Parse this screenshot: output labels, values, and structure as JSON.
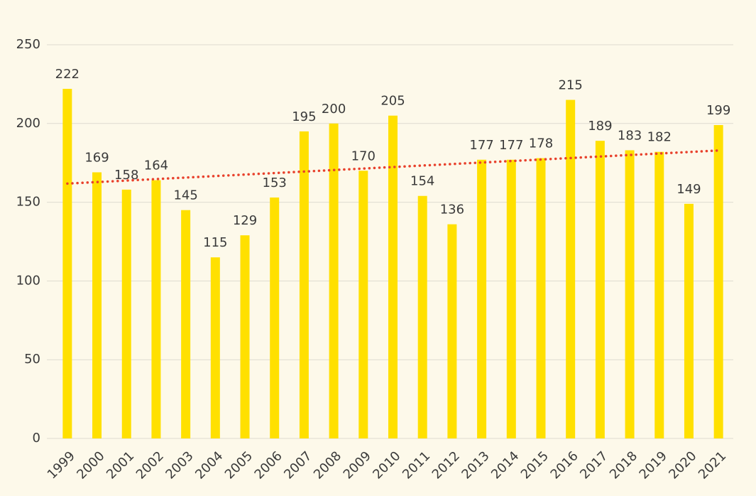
{
  "chart_data": {
    "type": "bar",
    "categories": [
      "1999",
      "2000",
      "2001",
      "2002",
      "2003",
      "2004",
      "2005",
      "2006",
      "2007",
      "2008",
      "2009",
      "2010",
      "2011",
      "2012",
      "2013",
      "2014",
      "2015",
      "2016",
      "2017",
      "2018",
      "2019",
      "2020",
      "2021"
    ],
    "values": [
      222,
      169,
      158,
      164,
      145,
      115,
      129,
      153,
      195,
      200,
      170,
      205,
      154,
      136,
      177,
      177,
      178,
      215,
      189,
      183,
      182,
      149,
      199
    ],
    "color": "#ffe000",
    "ylim": [
      0,
      250
    ],
    "yticks": [
      0,
      50,
      100,
      150,
      200,
      250
    ],
    "grid": true,
    "trendline": true,
    "trendline_color": "#e8412c"
  }
}
